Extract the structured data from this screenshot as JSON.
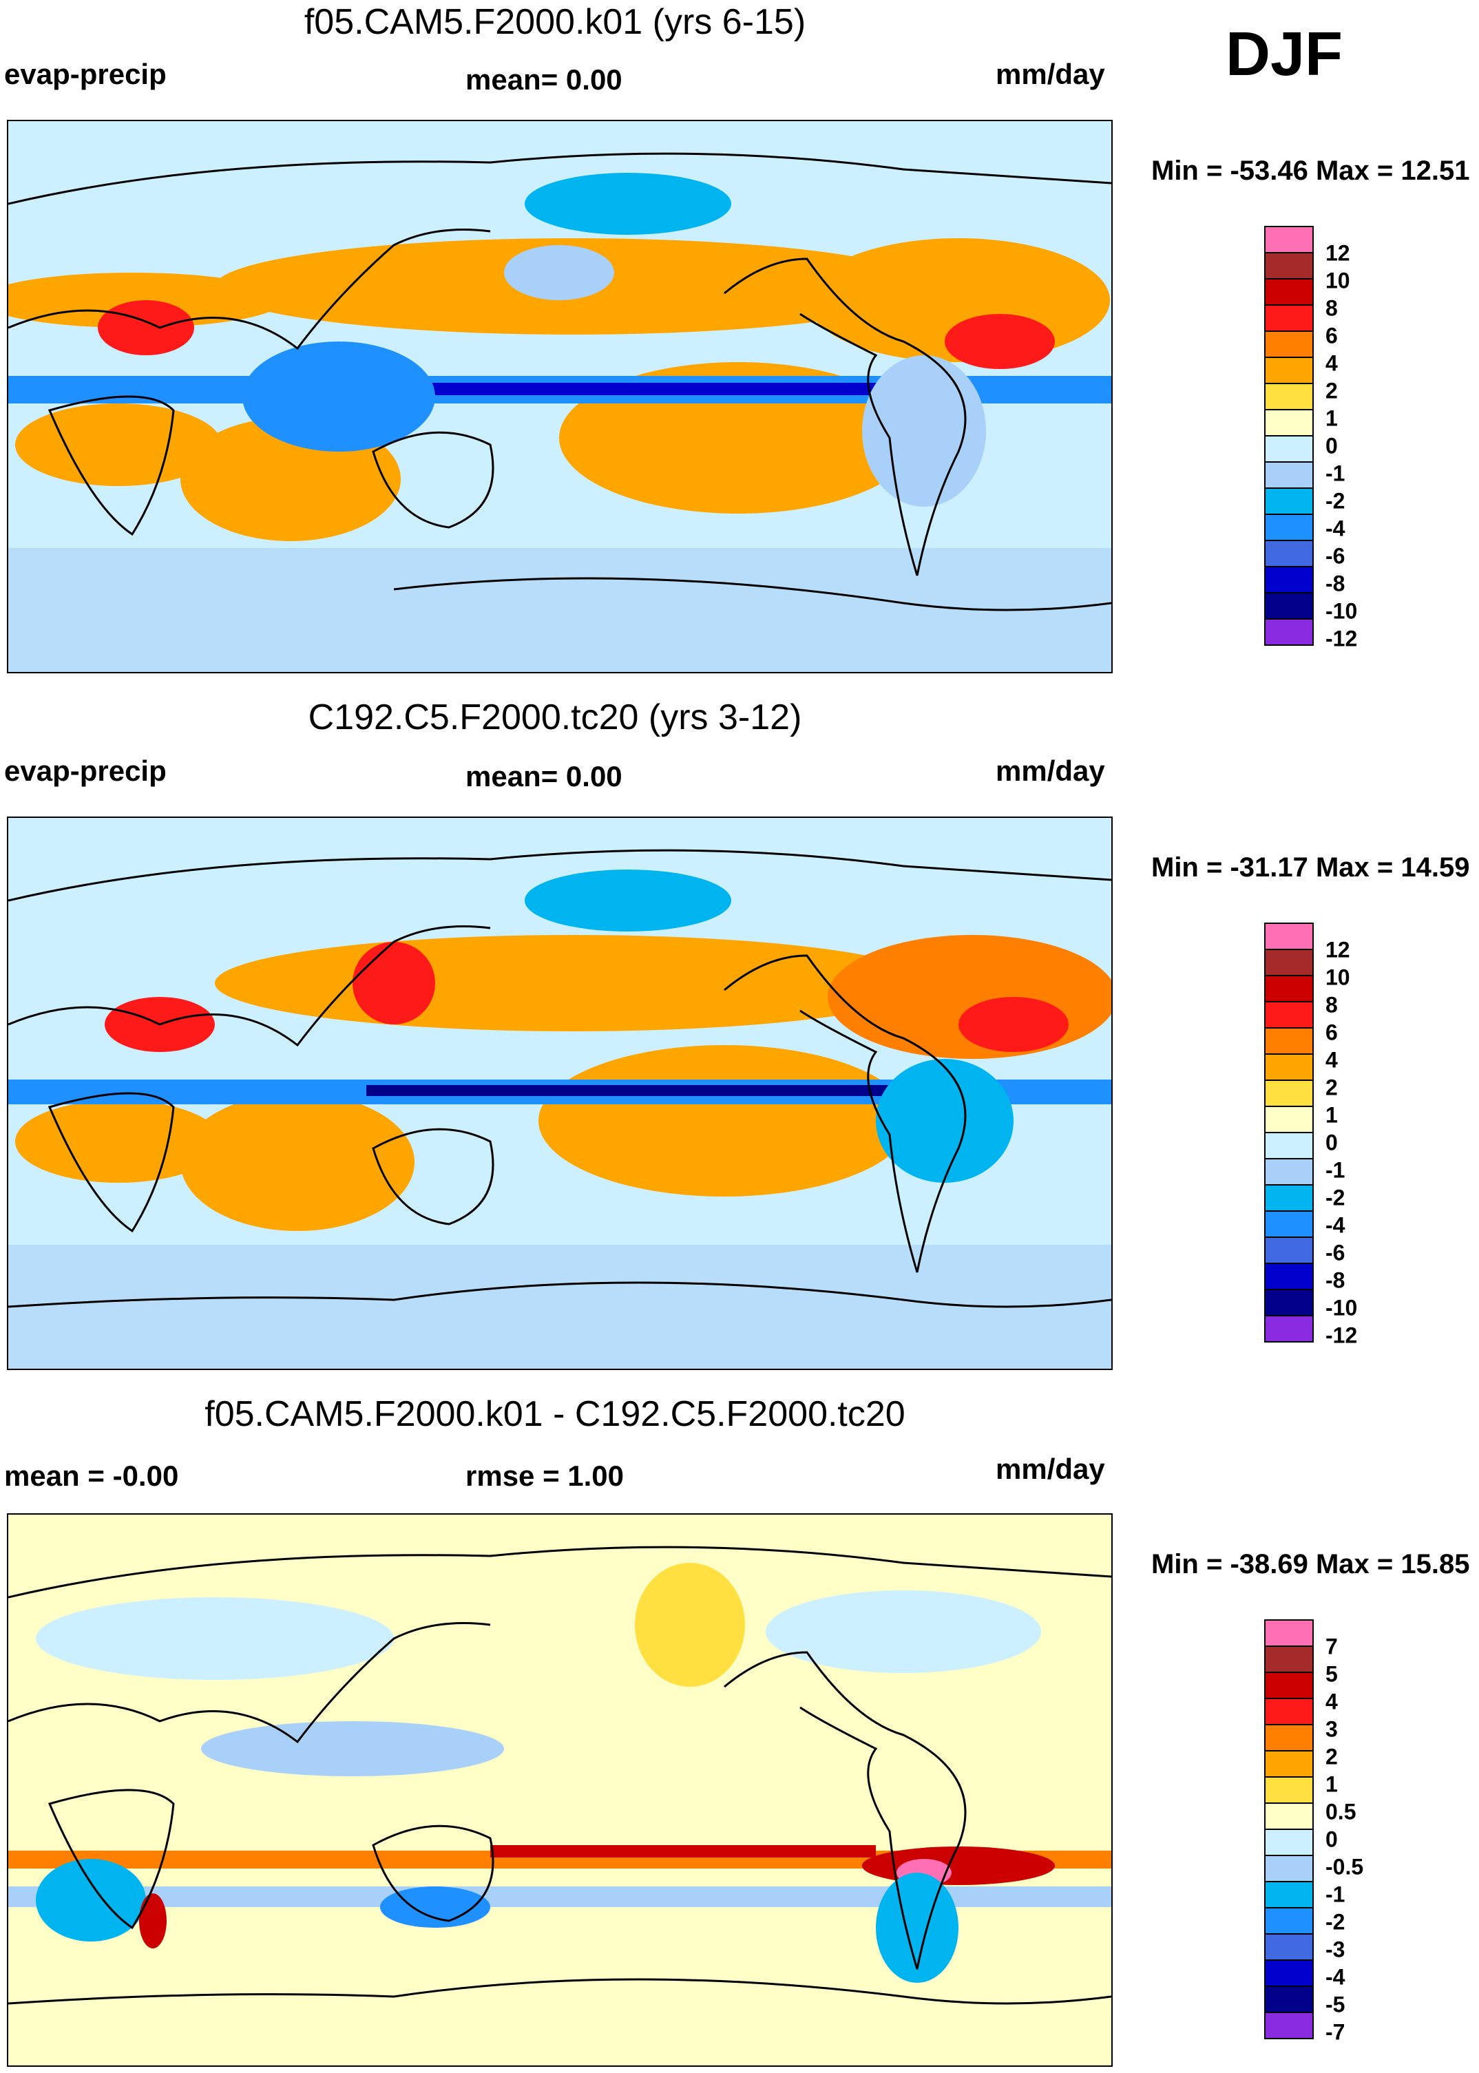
{
  "season": "DJF",
  "panels": [
    {
      "title": "f05.CAM5.F2000.k01 (yrs 6-15)",
      "left_label": "evap-precip",
      "center_label": "mean=   0.00",
      "right_label": "mm/day",
      "minmax": "Min = -53.46 Max =  12.51",
      "colorbar": {
        "labels": [
          "12",
          "10",
          "8",
          "6",
          "4",
          "2",
          "1",
          "0",
          "-1",
          "-2",
          "-4",
          "-6",
          "-8",
          "-10",
          "-12"
        ],
        "colors": [
          "#ff70b4",
          "#a52a2a",
          "#cd0000",
          "#ff1a1a",
          "#ff7f00",
          "#ffa500",
          "#ffe040",
          "#ffffc8",
          "#ccf0ff",
          "#a8d0f8",
          "#00b4f0",
          "#1e90ff",
          "#4169e1",
          "#0000cd",
          "#00008b",
          "#8a2be2"
        ]
      }
    },
    {
      "title": "C192.C5.F2000.tc20 (yrs 3-12)",
      "left_label": "evap-precip",
      "center_label": "mean=   0.00",
      "right_label": "mm/day",
      "minmax": "Min = -31.17 Max =  14.59",
      "colorbar": {
        "labels": [
          "12",
          "10",
          "8",
          "6",
          "4",
          "2",
          "1",
          "0",
          "-1",
          "-2",
          "-4",
          "-6",
          "-8",
          "-10",
          "-12"
        ],
        "colors": [
          "#ff70b4",
          "#a52a2a",
          "#cd0000",
          "#ff1a1a",
          "#ff7f00",
          "#ffa500",
          "#ffe040",
          "#ffffc8",
          "#ccf0ff",
          "#a8d0f8",
          "#00b4f0",
          "#1e90ff",
          "#4169e1",
          "#0000cd",
          "#00008b",
          "#8a2be2"
        ]
      }
    },
    {
      "title": "f05.CAM5.F2000.k01 - C192.C5.F2000.tc20",
      "left_label": "mean =  -0.00",
      "center_label": "rmse =   1.00",
      "right_label": "mm/day",
      "minmax": "Min = -38.69 Max =  15.85",
      "colorbar": {
        "labels": [
          "7",
          "5",
          "4",
          "3",
          "2",
          "1",
          "0.5",
          "0",
          "-0.5",
          "-1",
          "-2",
          "-3",
          "-4",
          "-5",
          "-7"
        ],
        "colors": [
          "#ff70b4",
          "#a52a2a",
          "#cd0000",
          "#ff1a1a",
          "#ff7f00",
          "#ffa500",
          "#ffe040",
          "#ffffc8",
          "#ccf0ff",
          "#a8d0f8",
          "#00b4f0",
          "#1e90ff",
          "#4169e1",
          "#0000cd",
          "#00008b",
          "#8a2be2"
        ]
      }
    }
  ]
}
